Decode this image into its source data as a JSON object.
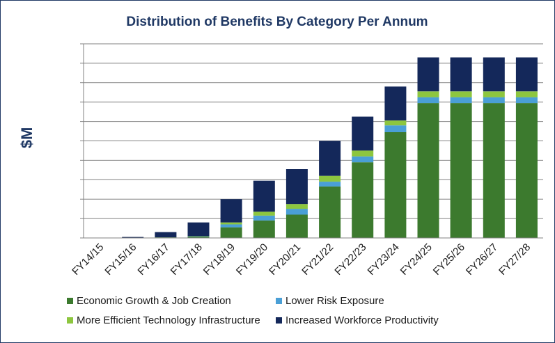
{
  "chart_data": {
    "type": "bar",
    "stacked": true,
    "title": "Distribution of Benefits By Category Per Annum",
    "xlabel": "",
    "ylabel": "$M",
    "ylim": [
      0,
      10
    ],
    "y_tick_labels_shown": false,
    "grid": true,
    "legend_position": "bottom",
    "categories": [
      "FY14/15",
      "FY15/16",
      "FY16/17",
      "FY17/18",
      "FY18/19",
      "FY19/20",
      "FY20/21",
      "FY21/22",
      "FY22/23",
      "FY23/24",
      "FY24/25",
      "FY25/26",
      "FY26/27",
      "FY27/28"
    ],
    "series": [
      {
        "name": "Economic Growth & Job Creation",
        "color": "#3c7a2e",
        "values": [
          0,
          0,
          0.03,
          0.05,
          0.55,
          0.9,
          1.2,
          2.65,
          3.9,
          5.45,
          6.95,
          6.95,
          6.95,
          6.95
        ]
      },
      {
        "name": "Lower Risk Exposure",
        "color": "#4a9fd6",
        "values": [
          0,
          0,
          0,
          0.02,
          0.15,
          0.25,
          0.3,
          0.25,
          0.3,
          0.35,
          0.3,
          0.3,
          0.3,
          0.3
        ]
      },
      {
        "name": "More Efficient Technology Infrastructure",
        "color": "#8dc63f",
        "values": [
          0,
          0,
          0,
          0.02,
          0.1,
          0.2,
          0.25,
          0.3,
          0.3,
          0.25,
          0.3,
          0.3,
          0.3,
          0.3
        ]
      },
      {
        "name": "Increased Workforce Productivity",
        "color": "#14285a",
        "values": [
          0,
          0.05,
          0.27,
          0.71,
          1.2,
          1.6,
          1.8,
          1.8,
          1.75,
          1.75,
          1.75,
          1.75,
          1.75,
          1.75
        ]
      }
    ]
  }
}
